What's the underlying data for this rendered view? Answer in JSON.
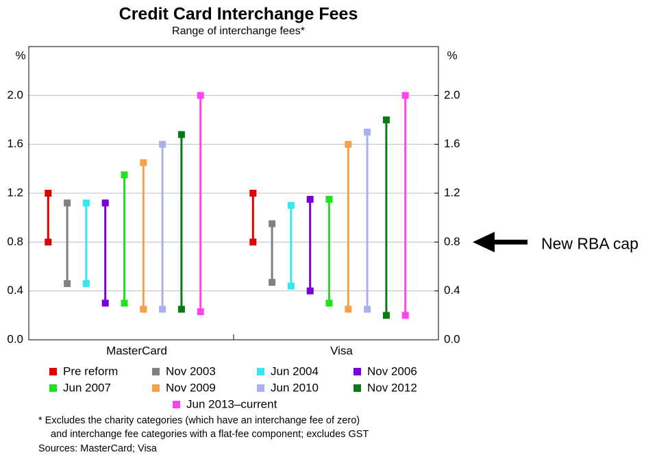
{
  "chart_data": {
    "type": "range",
    "title": "Credit Card Interchange Fees",
    "subtitle": "Range of interchange fees*",
    "y_unit": "%",
    "y2_unit": "%",
    "categories": [
      "MasterCard",
      "Visa"
    ],
    "ylim": [
      0,
      2.4
    ],
    "yticks": [
      {
        "value": 0,
        "label": "0.0"
      },
      0.4,
      0.8,
      1.2,
      1.6,
      {
        "value": 2,
        "label": "2.0"
      }
    ],
    "y2lim": [
      0,
      2.4
    ],
    "y2ticks": [
      {
        "value": 0,
        "label": "0.0"
      },
      0.4,
      0.8,
      1.2,
      1.6,
      {
        "value": 2,
        "label": "2.0"
      }
    ],
    "grid": true,
    "series": [
      {
        "name": "Pre reform",
        "color": "#e00000",
        "low": [
          0.8,
          0.8
        ],
        "high": [
          1.2,
          1.2
        ]
      },
      {
        "name": "Nov 2003",
        "color": "#808080",
        "low": [
          0.46,
          0.47
        ],
        "high": [
          1.12,
          0.95
        ]
      },
      {
        "name": "Jun 2004",
        "color": "#33e8f2",
        "low": [
          0.46,
          0.44
        ],
        "high": [
          1.12,
          1.1
        ]
      },
      {
        "name": "Nov 2006",
        "color": "#7a00d9",
        "low": [
          0.3,
          0.4
        ],
        "high": [
          1.12,
          1.15
        ]
      },
      {
        "name": "Jun 2007",
        "color": "#22e022",
        "low": [
          0.3,
          0.3
        ],
        "high": [
          1.35,
          1.15
        ]
      },
      {
        "name": "Nov 2009",
        "color": "#f7a04a",
        "low": [
          0.25,
          0.25
        ],
        "high": [
          1.45,
          1.6
        ]
      },
      {
        "name": "Jun 2010",
        "color": "#a8b0f0",
        "low": [
          0.25,
          0.25
        ],
        "high": [
          1.6,
          1.7
        ]
      },
      {
        "name": "Nov 2012",
        "color": "#0a7a14",
        "low": [
          0.25,
          0.2
        ],
        "high": [
          1.68,
          1.8
        ]
      },
      {
        "name": "Jun 2013–current",
        "color": "#ff44ee",
        "low": [
          0.23,
          0.2
        ],
        "high": [
          2.0,
          2.0
        ]
      }
    ],
    "annotation": {
      "text": "New RBA cap",
      "y": 0.8
    },
    "notes": [
      "*   Excludes the charity categories (which have an interchange fee of zero)",
      "and interchange fee categories with a flat-fee component; excludes GST",
      "Sources: MasterCard; Visa"
    ]
  }
}
